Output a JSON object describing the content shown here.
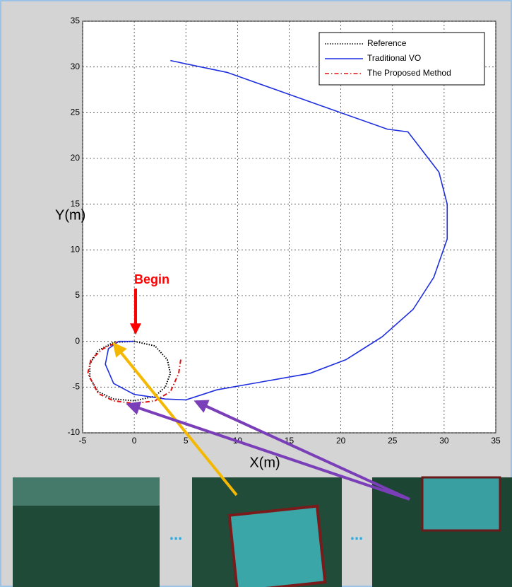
{
  "chart_data": {
    "type": "line",
    "xlabel": "X(m)",
    "ylabel": "Y(m)",
    "xlim": [
      -5,
      35
    ],
    "xticks": [
      -5,
      0,
      5,
      10,
      15,
      20,
      25,
      30,
      35
    ],
    "ylim": [
      -10,
      35
    ],
    "yticks": [
      -10,
      -5,
      0,
      5,
      10,
      15,
      20,
      25,
      30,
      35
    ],
    "grid": true,
    "legend": "upper right",
    "annotation": "Begin",
    "separators": [
      "...",
      "..."
    ],
    "series": [
      {
        "name": "Reference",
        "color": "#000000",
        "style": "dotted",
        "x": [
          0,
          2,
          3.2,
          3.5,
          3,
          2,
          0,
          -2,
          -3.5,
          -4.3,
          -4.3,
          -3.5,
          -2,
          0
        ],
        "values": [
          0,
          -0.5,
          -2,
          -3.5,
          -5,
          -6,
          -6.5,
          -6.3,
          -5.5,
          -4,
          -2.5,
          -1,
          -0.1,
          0
        ]
      },
      {
        "name": "Traditional VO",
        "color": "#1f2fe0",
        "style": "solid",
        "x": [
          3.5,
          9,
          15,
          20,
          24.5,
          26.5,
          29.5,
          30.3,
          30.3,
          29,
          27,
          24,
          20.5,
          17,
          12,
          8,
          5,
          3,
          0,
          -2,
          -2.8,
          -2.5,
          -1.5,
          0
        ],
        "values": [
          30.7,
          29.4,
          27,
          25,
          23.2,
          22.9,
          18.5,
          15,
          11.2,
          7,
          3.5,
          0.5,
          -2,
          -3.5,
          -4.5,
          -5.3,
          -6.4,
          -6.3,
          -5.8,
          -4.6,
          -2.5,
          -0.8,
          0,
          0
        ]
      },
      {
        "name": "The Proposed Method",
        "color": "#e01010",
        "style": "dashdot",
        "x": [
          4.5,
          4.3,
          3.5,
          2,
          0,
          -2,
          -3.5,
          -4.5,
          -4.2,
          -3,
          -1.5
        ],
        "values": [
          -2,
          -3.5,
          -5.5,
          -6.5,
          -6.8,
          -6.5,
          -5.7,
          -3.5,
          -2,
          -0.8,
          0
        ]
      }
    ]
  }
}
